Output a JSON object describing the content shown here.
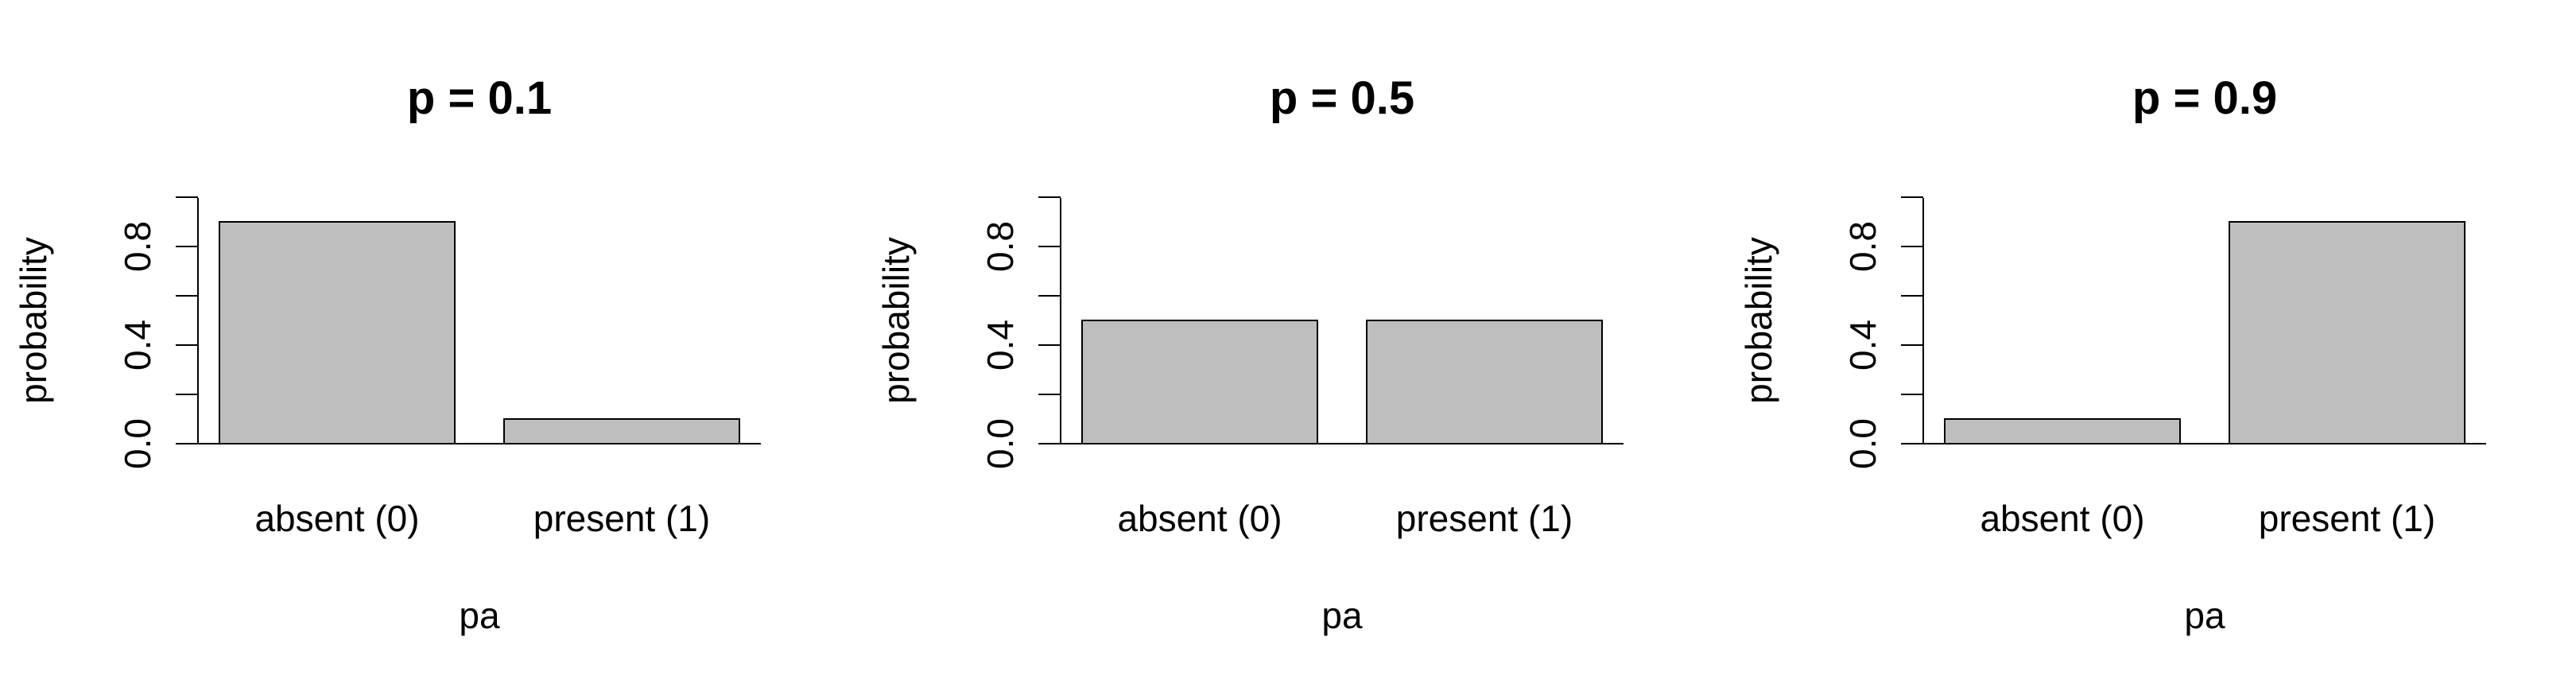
{
  "chart_data": [
    {
      "type": "bar",
      "title": "p = 0.1",
      "xlabel": "pa",
      "ylabel": "probability",
      "categories": [
        "absent (0)",
        "present (1)"
      ],
      "values": [
        0.9,
        0.1
      ],
      "ylim": [
        0,
        1
      ],
      "yticks": [
        "0.0",
        "0.4",
        "0.8"
      ],
      "bar_color": "#bebebe",
      "grid": false
    },
    {
      "type": "bar",
      "title": "p = 0.5",
      "xlabel": "pa",
      "ylabel": "probability",
      "categories": [
        "absent (0)",
        "present (1)"
      ],
      "values": [
        0.5,
        0.5
      ],
      "ylim": [
        0,
        1
      ],
      "yticks": [
        "0.0",
        "0.4",
        "0.8"
      ],
      "bar_color": "#bebebe",
      "grid": false
    },
    {
      "type": "bar",
      "title": "p = 0.9",
      "xlabel": "pa",
      "ylabel": "probability",
      "categories": [
        "absent (0)",
        "present (1)"
      ],
      "values": [
        0.1,
        0.9
      ],
      "ylim": [
        0,
        1
      ],
      "yticks": [
        "0.0",
        "0.4",
        "0.8"
      ],
      "bar_color": "#bebebe",
      "grid": false
    }
  ]
}
